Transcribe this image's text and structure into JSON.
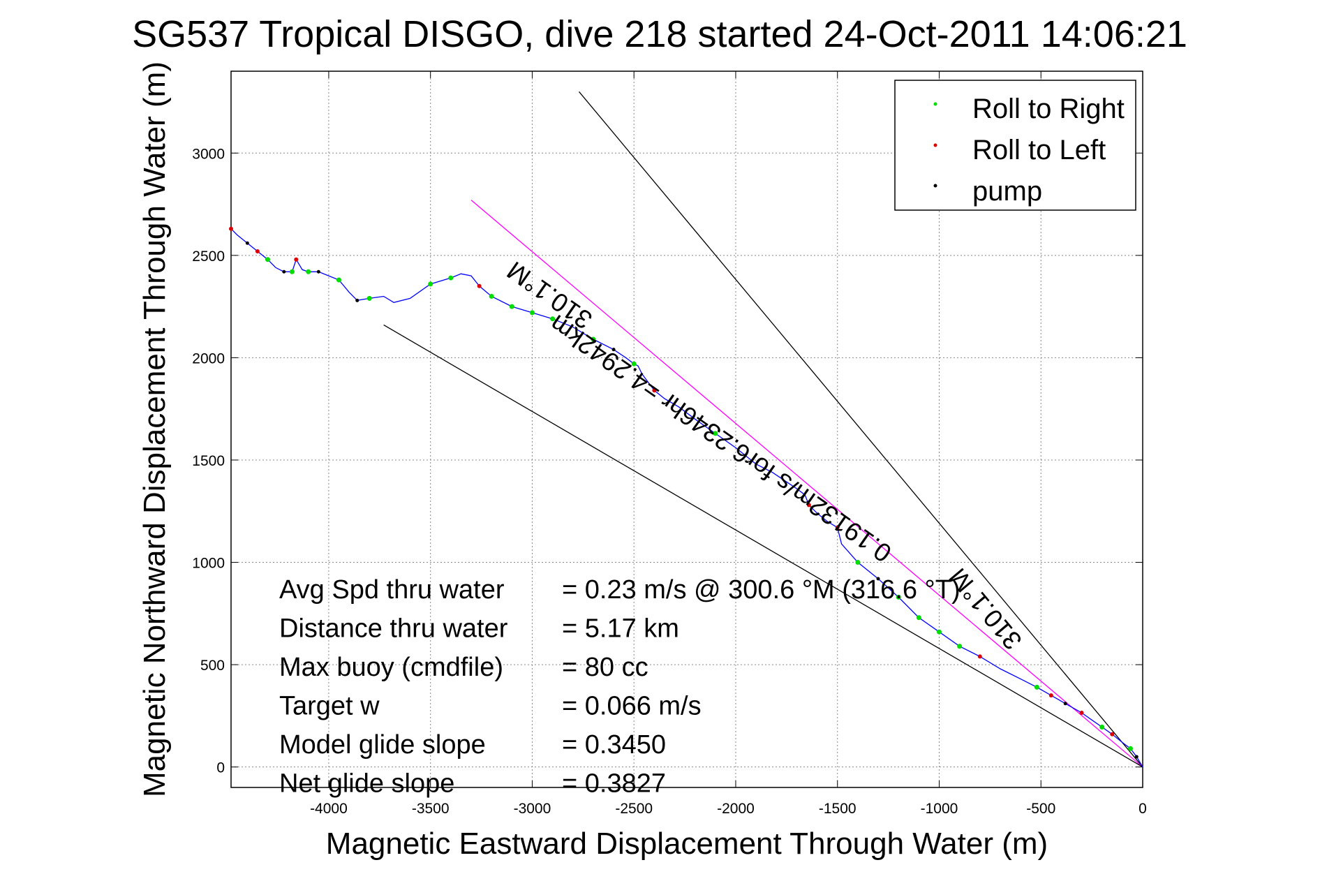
{
  "chart_data": {
    "type": "line",
    "title": "SG537 Tropical DISGO, dive 218 started 24-Oct-2011 14:06:21",
    "xlabel": "Magnetic Eastward Displacement Through Water (m)",
    "ylabel": "Magnetic Northward Displacement Through Water (m)",
    "xlim": [
      -4480,
      0
    ],
    "ylim": [
      -100,
      3400
    ],
    "xticks": [
      -4000,
      -3500,
      -3000,
      -2500,
      -2000,
      -1500,
      -1000,
      -500,
      0
    ],
    "yticks": [
      0,
      500,
      1000,
      1500,
      2000,
      2500,
      3000
    ],
    "grid": true,
    "legend_position": "top-right",
    "legend": [
      {
        "label": "Roll to Right",
        "color": "#00dd00"
      },
      {
        "label": "Roll to Left",
        "color": "#dd0000"
      },
      {
        "label": "pump",
        "color": "#000000"
      }
    ],
    "track": {
      "color": "#0000ff",
      "x": [
        0,
        -30,
        -60,
        -100,
        -150,
        -200,
        -250,
        -300,
        -380,
        -450,
        -520,
        -600,
        -700,
        -800,
        -900,
        -1000,
        -1100,
        -1200,
        -1300,
        -1400,
        -1480,
        -1500,
        -1550,
        -1600,
        -1640,
        -1660,
        -1700,
        -1760,
        -1820,
        -1900,
        -2000,
        -2100,
        -2200,
        -2280,
        -2350,
        -2400,
        -2430,
        -2460,
        -2480,
        -2500,
        -2540,
        -2600,
        -2700,
        -2800,
        -2900,
        -3000,
        -3100,
        -3200,
        -3260,
        -3300,
        -3350,
        -3400,
        -3500,
        -3600,
        -3680,
        -3730,
        -3800,
        -3860,
        -3900,
        -3950,
        -4000,
        -4050,
        -4100,
        -4130,
        -4160,
        -4180,
        -4220,
        -4260,
        -4300,
        -4350,
        -4400,
        -4450,
        -4480
      ],
      "y": [
        0,
        50,
        90,
        120,
        160,
        195,
        230,
        265,
        310,
        350,
        390,
        430,
        480,
        540,
        590,
        660,
        730,
        830,
        920,
        1000,
        1090,
        1170,
        1200,
        1240,
        1280,
        1330,
        1360,
        1400,
        1440,
        1480,
        1560,
        1630,
        1700,
        1760,
        1800,
        1840,
        1880,
        1920,
        1960,
        1970,
        2000,
        2040,
        2090,
        2150,
        2190,
        2220,
        2250,
        2300,
        2350,
        2400,
        2410,
        2390,
        2360,
        2290,
        2270,
        2300,
        2290,
        2280,
        2320,
        2380,
        2400,
        2420,
        2420,
        2430,
        2480,
        2420,
        2420,
        2440,
        2480,
        2520,
        2560,
        2600,
        2630
      ]
    },
    "right_roll_points": [
      [
        -60,
        90
      ],
      [
        -200,
        195
      ],
      [
        -520,
        390
      ],
      [
        -900,
        590
      ],
      [
        -1000,
        660
      ],
      [
        -1100,
        730
      ],
      [
        -1200,
        830
      ],
      [
        -1400,
        1000
      ],
      [
        -2100,
        1630
      ],
      [
        -2500,
        1970
      ],
      [
        -2700,
        2090
      ],
      [
        -2900,
        2190
      ],
      [
        -3000,
        2220
      ],
      [
        -3100,
        2250
      ],
      [
        -3200,
        2300
      ],
      [
        -3400,
        2390
      ],
      [
        -3500,
        2360
      ],
      [
        -3800,
        2290
      ],
      [
        -3950,
        2380
      ],
      [
        -4100,
        2420
      ],
      [
        -4180,
        2420
      ],
      [
        -4300,
        2480
      ]
    ],
    "left_roll_points": [
      [
        -150,
        160
      ],
      [
        -300,
        265
      ],
      [
        -450,
        350
      ],
      [
        -800,
        540
      ],
      [
        -1500,
        1170
      ],
      [
        -1640,
        1280
      ],
      [
        -2400,
        1840
      ],
      [
        -3260,
        2350
      ],
      [
        -4160,
        2480
      ],
      [
        -4350,
        2520
      ],
      [
        -4480,
        2630
      ]
    ],
    "pump_points": [
      [
        -30,
        50
      ],
      [
        -380,
        310
      ],
      [
        -1300,
        920
      ],
      [
        -2600,
        2040
      ],
      [
        -3860,
        2280
      ],
      [
        -4050,
        2420
      ],
      [
        -4220,
        2420
      ],
      [
        -4400,
        2560
      ]
    ],
    "reference_lines": [
      {
        "name": "heading-upper",
        "color": "#000000",
        "x": [
          0,
          -2770
        ],
        "y": [
          0,
          3300
        ]
      },
      {
        "name": "heading-center",
        "color": "#ff00ff",
        "x": [
          0,
          -3300
        ],
        "y": [
          0,
          2770
        ]
      },
      {
        "name": "heading-lower",
        "color": "#000000",
        "x": [
          0,
          -3730
        ],
        "y": [
          0,
          2160
        ]
      }
    ],
    "annotations": [
      {
        "text": "310.1°M",
        "x": -2890,
        "y": 2340,
        "angle_deg": 215
      },
      {
        "text": "0.19132m/s for6.2346hr =4.2942km",
        "x": -2050,
        "y": 1640,
        "angle_deg": 215
      },
      {
        "text": "310.1°M",
        "x": -740,
        "y": 800,
        "angle_deg": 230
      }
    ],
    "info_box": [
      {
        "label": "Avg Spd thru water",
        "value": "=  0.23 m/s @ 300.6  °M (316.6 °T)"
      },
      {
        "label": "Distance thru water",
        "value": "=  5.17 km"
      },
      {
        "label": "Max buoy (cmdfile)",
        "value": "= 80 cc"
      },
      {
        "label": "Target w",
        "value": "= 0.066 m/s"
      },
      {
        "label": "Model glide slope",
        "value": "= 0.3450"
      },
      {
        "label": "Net glide slope",
        "value": "= 0.3827"
      }
    ]
  }
}
